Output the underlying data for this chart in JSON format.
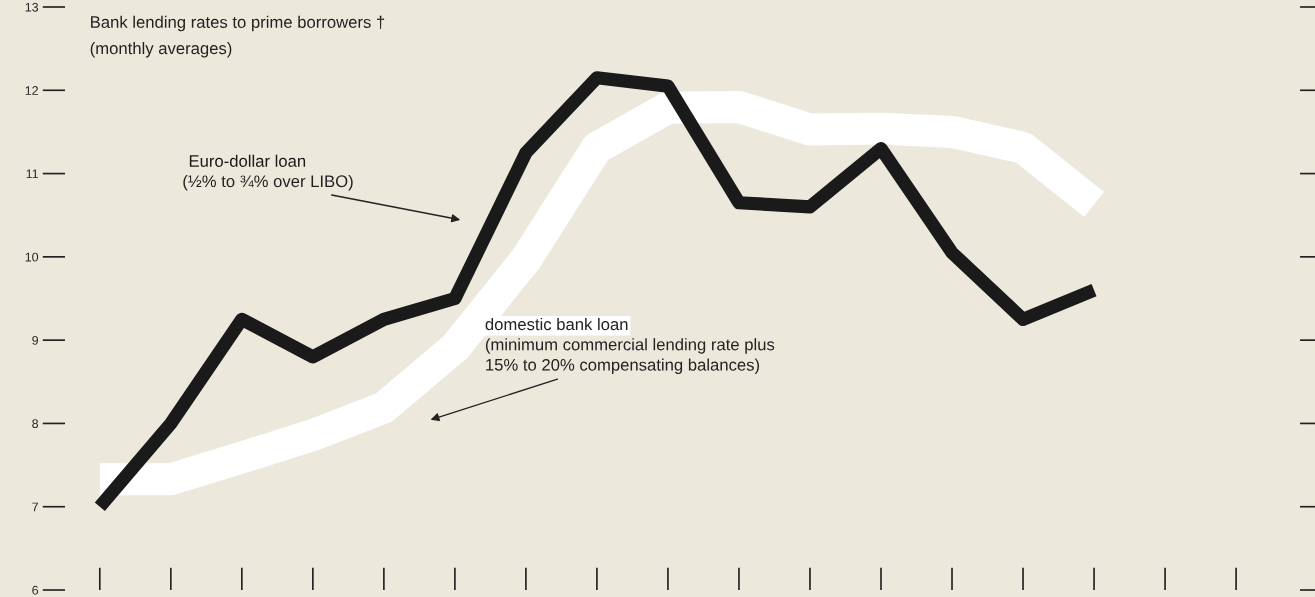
{
  "chart_data": {
    "type": "line",
    "title": "Bank lending rates to prime borrowers †",
    "subtitle": "(monthly averages)",
    "categories": [
      null,
      null,
      null,
      null,
      null,
      null,
      null,
      null,
      null,
      null,
      null,
      null,
      null,
      null,
      null,
      null,
      null
    ],
    "series": [
      {
        "name": "Euro-dollar loan",
        "color": "#1a1a1a",
        "values": [
          7.0,
          8.0,
          9.25,
          8.8,
          9.25,
          9.5,
          11.25,
          12.15,
          12.05,
          10.65,
          10.6,
          11.3,
          10.05,
          9.25,
          9.6,
          null,
          null
        ]
      },
      {
        "name": "domestic bank loan",
        "color": "#ffffff",
        "values": [
          7.33,
          7.33,
          7.59,
          7.86,
          8.19,
          8.91,
          9.97,
          11.31,
          11.79,
          11.8,
          11.53,
          11.54,
          11.5,
          11.31,
          10.63,
          null,
          null
        ]
      }
    ],
    "annotations": [
      "(½% to ¾% over LIBO)",
      "(minimum commercial lending rate plus\n15% to 20% compensating balances)"
    ],
    "ylim": [
      6,
      13
    ],
    "yticks": [
      6,
      7,
      8,
      9,
      10,
      11,
      12,
      13
    ],
    "tick_labels": "y",
    "grid": false,
    "legend": false
  }
}
